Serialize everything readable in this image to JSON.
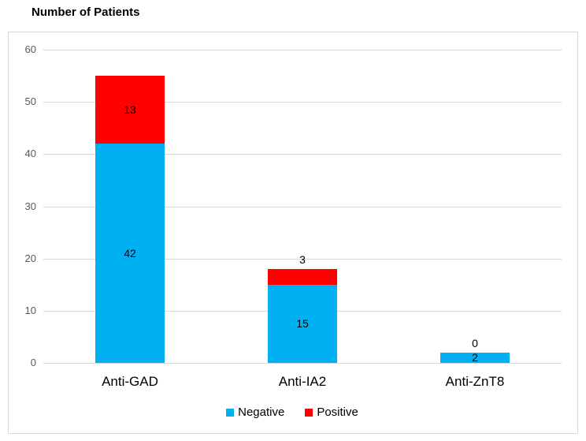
{
  "chart_data": {
    "type": "bar",
    "stacked": true,
    "title": "Number of Patients",
    "categories": [
      "Anti-GAD",
      "Anti-IA2",
      "Anti-ZnT8"
    ],
    "series": [
      {
        "name": "Negative",
        "color": "#00B0F0",
        "values": [
          42,
          15,
          2
        ]
      },
      {
        "name": "Positive",
        "color": "#FF0000",
        "values": [
          13,
          3,
          0
        ]
      }
    ],
    "ylim": [
      0,
      60
    ],
    "yticks": [
      0,
      10,
      20,
      30,
      40,
      50,
      60
    ],
    "xlabel": "",
    "ylabel": "",
    "grid": true,
    "legend_position": "bottom"
  },
  "colors": {
    "background": "#FFFFFF",
    "frame_border": "#D9D9D9",
    "gridline": "#D9D9D9",
    "ytick_text": "#595959",
    "category_text": "#000000",
    "data_label_text": "#000000",
    "title_text": "#000000"
  }
}
